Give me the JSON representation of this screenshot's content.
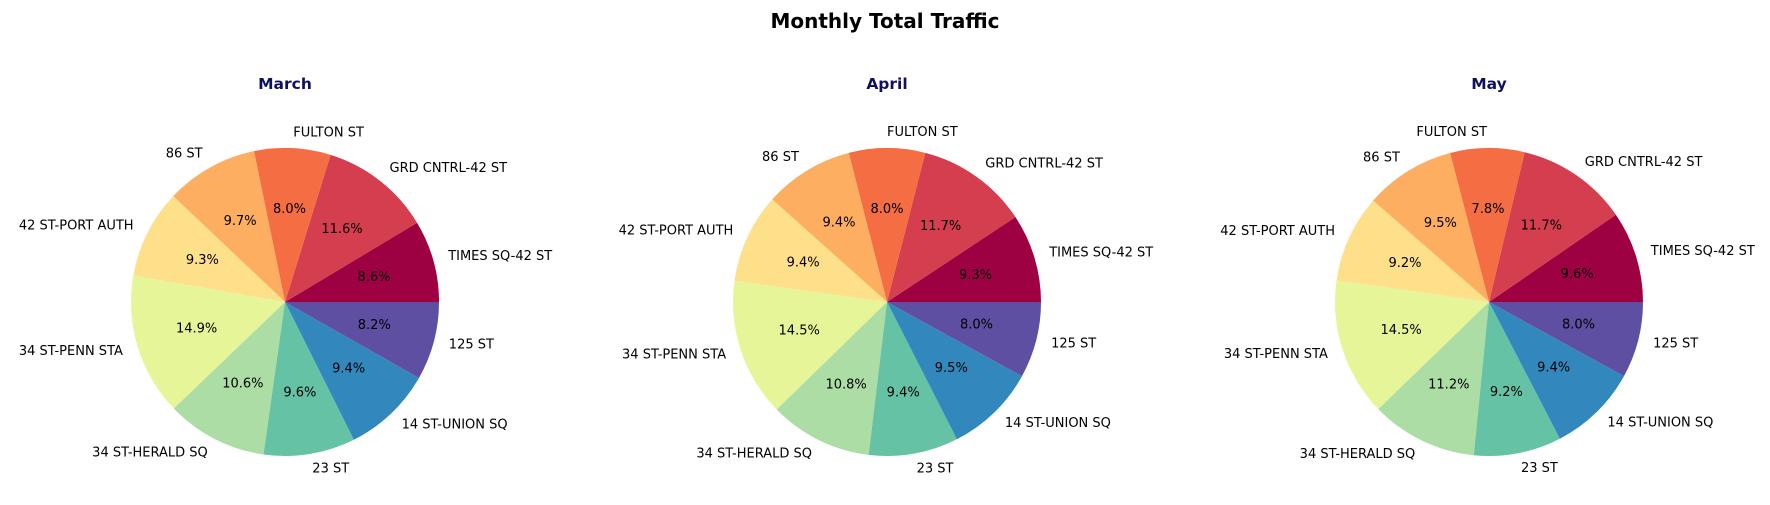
{
  "title": "Monthly Total Traffic",
  "style": {
    "subtitle_color": "#101060"
  },
  "chart_data": [
    {
      "type": "pie",
      "title": "March",
      "categories": [
        "TIMES SQ-42 ST",
        "GRD CNTRL-42 ST",
        "FULTON ST",
        "86 ST",
        "42 ST-PORT AUTH",
        "34 ST-PENN STA",
        "34 ST-HERALD SQ",
        "23 ST",
        "14 ST-UNION SQ",
        "125 ST"
      ],
      "values": [
        8.6,
        11.6,
        8.0,
        9.7,
        9.3,
        14.9,
        10.6,
        9.6,
        9.4,
        8.2
      ],
      "labels": [
        "8.6%",
        "11.6%",
        "8.0%",
        "9.7%",
        "9.3%",
        "14.9%",
        "10.6%",
        "9.6%",
        "9.4%",
        "8.2%"
      ],
      "colors": [
        "#9e0142",
        "#d53e4f",
        "#f46d43",
        "#fdae61",
        "#fee08b",
        "#e6f598",
        "#abdda4",
        "#66c2a5",
        "#3288bd",
        "#5e4fa2"
      ]
    },
    {
      "type": "pie",
      "title": "April",
      "categories": [
        "TIMES SQ-42 ST",
        "GRD CNTRL-42 ST",
        "FULTON ST",
        "86 ST",
        "42 ST-PORT AUTH",
        "34 ST-PENN STA",
        "34 ST-HERALD SQ",
        "23 ST",
        "14 ST-UNION SQ",
        "125 ST"
      ],
      "values": [
        9.3,
        11.7,
        8.0,
        9.4,
        9.4,
        14.5,
        10.8,
        9.4,
        9.5,
        8.0
      ],
      "labels": [
        "9.3%",
        "11.7%",
        "8.0%",
        "9.4%",
        "9.4%",
        "14.5%",
        "10.8%",
        "9.4%",
        "9.5%",
        "8.0%"
      ],
      "colors": [
        "#9e0142",
        "#d53e4f",
        "#f46d43",
        "#fdae61",
        "#fee08b",
        "#e6f598",
        "#abdda4",
        "#66c2a5",
        "#3288bd",
        "#5e4fa2"
      ]
    },
    {
      "type": "pie",
      "title": "May",
      "categories": [
        "TIMES SQ-42 ST",
        "GRD CNTRL-42 ST",
        "FULTON ST",
        "86 ST",
        "42 ST-PORT AUTH",
        "34 ST-PENN STA",
        "34 ST-HERALD SQ",
        "23 ST",
        "14 ST-UNION SQ",
        "125 ST"
      ],
      "values": [
        9.6,
        11.7,
        7.8,
        9.5,
        9.2,
        14.5,
        11.2,
        9.2,
        9.4,
        8.0
      ],
      "labels": [
        "9.6%",
        "11.7%",
        "7.8%",
        "9.5%",
        "9.2%",
        "14.5%",
        "11.2%",
        "9.2%",
        "9.4%",
        "8.0%"
      ],
      "colors": [
        "#9e0142",
        "#d53e4f",
        "#f46d43",
        "#fdae61",
        "#fee08b",
        "#e6f598",
        "#abdda4",
        "#66c2a5",
        "#3288bd",
        "#5e4fa2"
      ]
    }
  ]
}
